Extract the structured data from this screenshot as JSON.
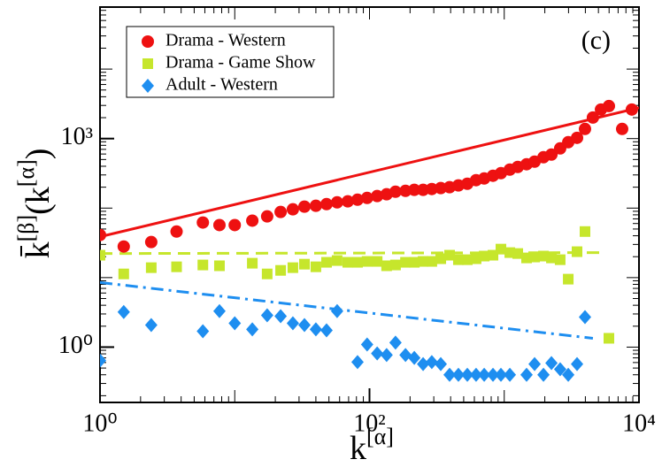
{
  "chart_data": {
    "type": "scatter",
    "annotation": "(c)",
    "xlabel": {
      "base": "k",
      "sup": "[α]"
    },
    "ylabel": [
      "k̄",
      "[β]",
      "(k",
      "[α]",
      ")"
    ],
    "log_x": true,
    "log_y": true,
    "xlim": [
      1,
      10000
    ],
    "ylim": [
      0.16,
      78000
    ],
    "xticks": [
      {
        "value": 1,
        "label": "10⁰"
      },
      {
        "value": 100,
        "label": "10²"
      },
      {
        "value": 10000,
        "label": "10⁴"
      }
    ],
    "yticks": [
      {
        "value": 1,
        "label": "10⁰"
      },
      {
        "value": 1000,
        "label": "10³"
      }
    ],
    "legend": "upper left",
    "series": [
      {
        "name": "Drama - Western",
        "color": "#ee1111",
        "marker": "circle",
        "x": [
          1,
          1.5,
          2.4,
          3.7,
          5.8,
          7.7,
          10,
          13.5,
          17.4,
          21.9,
          27,
          32.9,
          40,
          48,
          57.5,
          69,
          81.5,
          96,
          114,
          134,
          156,
          185,
          215,
          250,
          290,
          338,
          393,
          457,
          532,
          618,
          710,
          825,
          945,
          1100,
          1260,
          1465,
          1680,
          1955,
          2240,
          2600,
          2985,
          3470,
          3975,
          4550,
          5220,
          5980,
          7500,
          8850
        ],
        "values": [
          41,
          28,
          32.5,
          46,
          62,
          57,
          57,
          66,
          76,
          88,
          96,
          105,
          108,
          114,
          121,
          125,
          132,
          140,
          149,
          158,
          172,
          177,
          183,
          183,
          188,
          194,
          200,
          212,
          224,
          252,
          267,
          292,
          318,
          358,
          391,
          427,
          466,
          539,
          589,
          722,
          887,
          1025,
          1376,
          2010,
          2620,
          2940,
          1376,
          2620
        ]
      },
      {
        "name": "Drama - Game Show",
        "color": "#c6e62c",
        "marker": "square",
        "x": [
          1,
          1.5,
          2.4,
          3.7,
          5.8,
          7.7,
          13.5,
          17.4,
          21.9,
          27,
          32.9,
          40,
          48,
          57.5,
          69,
          81.5,
          96,
          114,
          134,
          156,
          185,
          215,
          250,
          290,
          338,
          393,
          457,
          532,
          618,
          710,
          825,
          945,
          1100,
          1260,
          1465,
          1680,
          1955,
          2240,
          2600,
          2985,
          3470,
          3975,
          5980
        ],
        "values": [
          21,
          11.3,
          13.9,
          14.3,
          15.2,
          14.8,
          16.1,
          11.3,
          12.7,
          13.9,
          15.6,
          14.3,
          16.6,
          17.6,
          16.6,
          16.6,
          17.1,
          17.1,
          14.8,
          15.2,
          16.6,
          16.6,
          17.1,
          17.1,
          18.7,
          21,
          18.1,
          18.1,
          18.7,
          20.4,
          21,
          25.7,
          22.9,
          22.2,
          19.2,
          19.8,
          20.4,
          19.2,
          18.1,
          9.5,
          23.6,
          46,
          1.34
        ]
      },
      {
        "name": "Adult - Western",
        "color": "#1e8ef0",
        "marker": "diamond",
        "x": [
          1,
          1.5,
          2.4,
          5.8,
          7.7,
          10,
          13.5,
          17.4,
          21.9,
          27,
          32.9,
          40,
          48,
          57.5,
          81.5,
          96,
          114,
          134,
          156,
          185,
          215,
          250,
          290,
          338,
          393,
          457,
          532,
          618,
          710,
          825,
          945,
          1100,
          1465,
          1680,
          1955,
          2240,
          2600,
          2985,
          3470,
          3975
        ],
        "values": [
          0.64,
          3.2,
          2.08,
          1.69,
          3.3,
          2.2,
          1.8,
          2.87,
          2.78,
          2.2,
          2.08,
          1.8,
          1.74,
          3.3,
          0.61,
          1.09,
          0.81,
          0.77,
          1.16,
          0.77,
          0.7,
          0.57,
          0.61,
          0.57,
          0.4,
          0.4,
          0.4,
          0.4,
          0.4,
          0.4,
          0.4,
          0.4,
          0.4,
          0.57,
          0.4,
          0.59,
          0.48,
          0.4,
          0.57,
          2.7
        ]
      }
    ],
    "fit_lines": [
      {
        "color": "#ee1111",
        "style": "solid",
        "x": [
          1,
          10000
        ],
        "values": [
          38.7,
          2775
        ]
      },
      {
        "color": "#c6e62c",
        "style": "dashed",
        "x": [
          1,
          5710
        ],
        "values": [
          22.2,
          22.9
        ]
      },
      {
        "color": "#1e8ef0",
        "style": "dashdot",
        "x": [
          1,
          4550
        ],
        "values": [
          8.5,
          1.34
        ]
      }
    ]
  }
}
